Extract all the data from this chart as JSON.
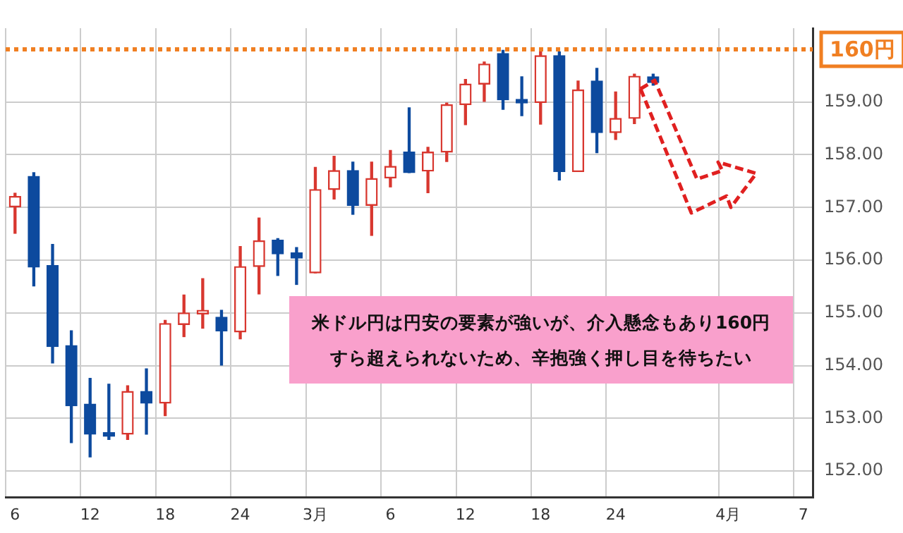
{
  "chart_data": {
    "type": "candlestick",
    "categories": [
      "6",
      null,
      null,
      null,
      "12",
      null,
      null,
      null,
      "18",
      null,
      null,
      null,
      "24",
      null,
      null,
      null,
      "3月",
      null,
      null,
      null,
      "6",
      null,
      null,
      null,
      "12",
      null,
      null,
      null,
      "18",
      null,
      null,
      null,
      "24",
      null,
      null,
      null,
      null,
      null,
      "4月",
      null,
      null,
      null,
      "7"
    ],
    "ohlc": [
      [
        157.01,
        157.27,
        156.51,
        157.21
      ],
      [
        157.59,
        157.66,
        155.51,
        155.87
      ],
      [
        155.9,
        156.3,
        154.05,
        154.36
      ],
      [
        154.38,
        154.66,
        152.54,
        153.24
      ],
      [
        153.27,
        153.76,
        152.27,
        152.7
      ],
      [
        152.73,
        153.65,
        152.6,
        152.66
      ],
      [
        152.7,
        153.62,
        152.6,
        153.51
      ],
      [
        153.51,
        153.94,
        152.7,
        153.29
      ],
      [
        153.29,
        154.86,
        153.05,
        154.8
      ],
      [
        154.78,
        155.34,
        154.55,
        155.0
      ],
      [
        154.98,
        155.65,
        154.71,
        155.05
      ],
      [
        154.92,
        155.05,
        154.01,
        154.66
      ],
      [
        154.64,
        156.26,
        154.51,
        155.88
      ],
      [
        155.88,
        156.8,
        155.36,
        156.37
      ],
      [
        156.38,
        156.41,
        155.71,
        156.12
      ],
      [
        156.14,
        156.24,
        155.54,
        156.04
      ],
      [
        155.76,
        157.76,
        155.76,
        157.34
      ],
      [
        157.34,
        157.97,
        157.16,
        157.7
      ],
      [
        157.7,
        157.86,
        156.87,
        157.04
      ],
      [
        157.04,
        157.86,
        156.47,
        157.55
      ],
      [
        157.56,
        158.08,
        157.39,
        157.78
      ],
      [
        158.05,
        158.89,
        157.66,
        157.66
      ],
      [
        157.69,
        158.14,
        157.28,
        158.05
      ],
      [
        158.05,
        158.98,
        157.87,
        158.95
      ],
      [
        158.95,
        159.43,
        158.57,
        159.34
      ],
      [
        159.34,
        159.76,
        159.01,
        159.72
      ],
      [
        159.92,
        159.98,
        158.86,
        159.04
      ],
      [
        159.05,
        159.48,
        158.74,
        158.98
      ],
      [
        158.99,
        159.95,
        158.58,
        159.88
      ],
      [
        159.88,
        159.95,
        157.52,
        157.68
      ],
      [
        157.68,
        159.4,
        157.68,
        159.23
      ],
      [
        159.4,
        159.64,
        158.04,
        158.42
      ],
      [
        158.42,
        159.19,
        158.29,
        158.69
      ],
      [
        158.69,
        159.53,
        158.59,
        159.49
      ],
      [
        159.48,
        159.53,
        159.32,
        159.37
      ],
      null,
      null,
      null,
      null,
      null,
      null,
      null,
      null
    ],
    "colors": [
      "#d8372f",
      "#0d4a9e",
      "#0d4a9e",
      "#0d4a9e",
      "#0d4a9e",
      "#0d4a9e",
      "#d8372f",
      "#0d4a9e",
      "#d8372f",
      "#d8372f",
      "#d8372f",
      "#0d4a9e",
      "#d8372f",
      "#d8372f",
      "#0d4a9e",
      "#0d4a9e",
      "#d8372f",
      "#d8372f",
      "#0d4a9e",
      "#d8372f",
      "#d8372f",
      "#0d4a9e",
      "#d8372f",
      "#d8372f",
      "#d8372f",
      "#d8372f",
      "#0d4a9e",
      "#0d4a9e",
      "#d8372f",
      "#0d4a9e",
      "#d8372f",
      "#0d4a9e",
      "#d8372f",
      "#d8372f",
      "#0d4a9e",
      null,
      null,
      null,
      null,
      null,
      null,
      null,
      null
    ],
    "ylim": [
      151.5,
      160.4
    ],
    "yticks": [
      {
        "value": 152,
        "label": "152.00"
      },
      {
        "value": 153,
        "label": "153.00"
      },
      {
        "value": 154,
        "label": "154.00"
      },
      {
        "value": 155,
        "label": "155.00"
      },
      {
        "value": 156,
        "label": "156.00"
      },
      {
        "value": 157,
        "label": "157.00"
      },
      {
        "value": 158,
        "label": "158.00"
      },
      {
        "value": 159,
        "label": "159.00"
      }
    ],
    "grid": true,
    "ref_lines": [
      {
        "axis": "y",
        "value": 160,
        "label": "160円",
        "color": "#f07f22",
        "line_style": "dotted"
      }
    ],
    "annotations": [
      "米ドル円は円安の要素が強いが、介入懸念もあり160円",
      "すら超えられないため、辛抱強く押し目を待ちたい"
    ]
  }
}
